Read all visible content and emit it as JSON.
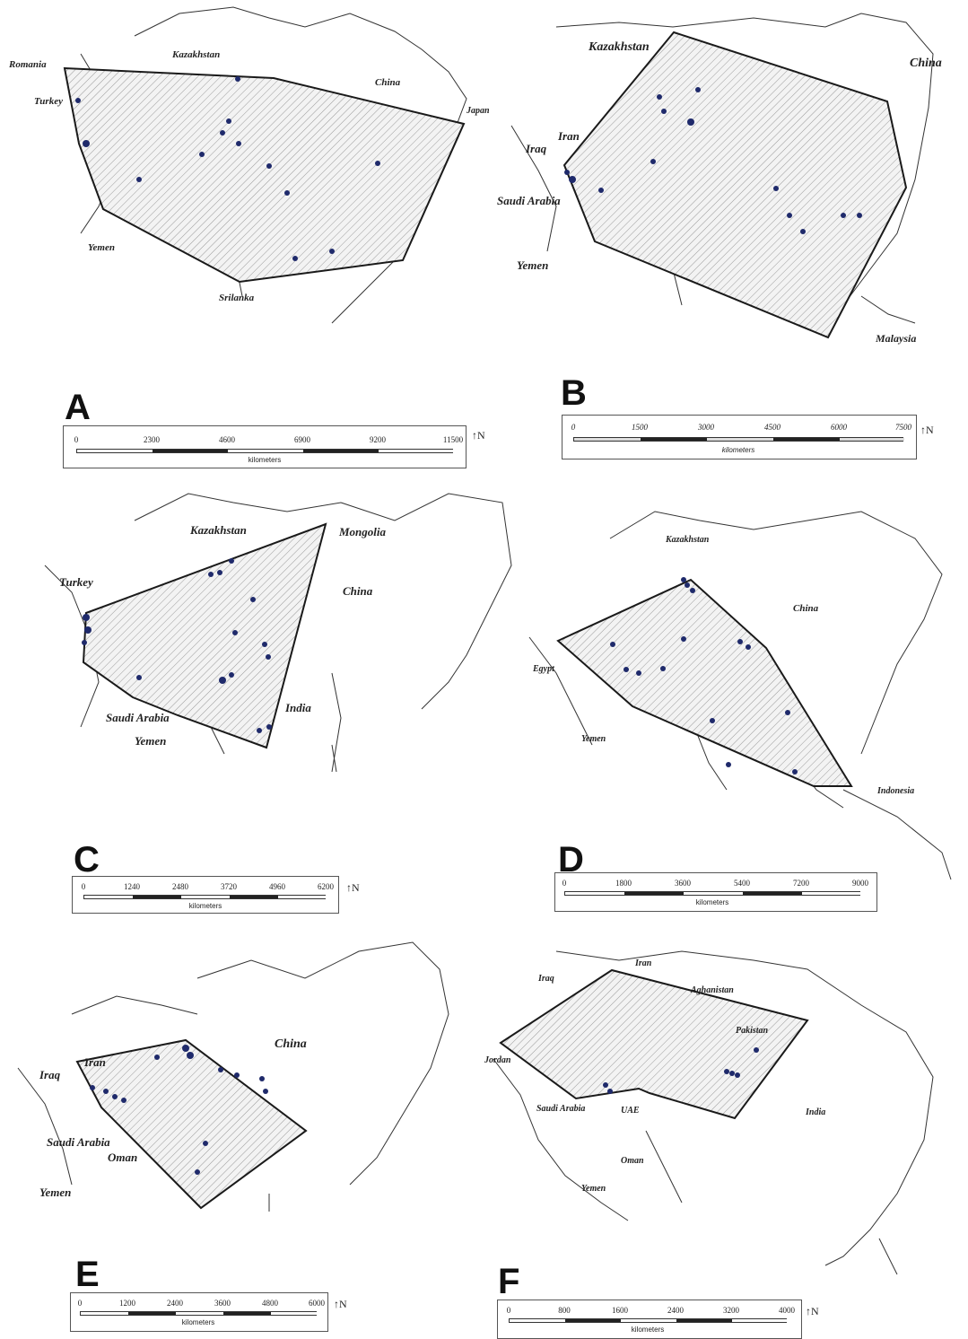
{
  "panels": [
    {
      "letter": "A",
      "labels": [
        "Romania",
        "Kazakhstan",
        "China",
        "Turkey",
        "Japan",
        "Yemen",
        "Srilanka"
      ],
      "scale": {
        "ticks": [
          "0",
          "2300",
          "4600",
          "6900",
          "9200",
          "11500"
        ],
        "units": "kilometers"
      },
      "north": "N"
    },
    {
      "letter": "B",
      "labels": [
        "Kazakhstan",
        "China",
        "Iran",
        "Iraq",
        "Saudi Arabia",
        "Yemen",
        "Malaysia"
      ],
      "scale": {
        "ticks": [
          "0",
          "1500",
          "3000",
          "4500",
          "6000",
          "7500"
        ],
        "units": "kilometers"
      },
      "north": "N"
    },
    {
      "letter": "C",
      "labels": [
        "Kazakhstan",
        "Mongolia",
        "Turkey",
        "China",
        "Saudi Arabia",
        "India",
        "Yemen"
      ],
      "scale": {
        "ticks": [
          "0",
          "1240",
          "2480",
          "3720",
          "4960",
          "6200"
        ],
        "units": "kilometers"
      },
      "north": "N"
    },
    {
      "letter": "D",
      "labels": [
        "Kazakhstan",
        "China",
        "Egypt",
        "Yemen",
        "Indonesia"
      ],
      "scale": {
        "ticks": [
          "0",
          "1800",
          "3600",
          "5400",
          "7200",
          "9000"
        ],
        "units": "kilometers"
      },
      "north": ""
    },
    {
      "letter": "E",
      "labels": [
        "China",
        "Iran",
        "Iraq",
        "Saudi Arabia",
        "Oman",
        "Yemen"
      ],
      "scale": {
        "ticks": [
          "0",
          "1200",
          "2400",
          "3600",
          "4800",
          "6000"
        ],
        "units": "kilometers"
      },
      "north": "N"
    },
    {
      "letter": "F",
      "labels": [
        "Iraq",
        "Iran",
        "Aghanistan",
        "Jordan",
        "Pakistan",
        "Saudi Arabia",
        "UAE",
        "India",
        "Oman",
        "Yemen"
      ],
      "scale": {
        "ticks": [
          "0",
          "800",
          "1600",
          "2400",
          "3200",
          "4000"
        ],
        "units": "kilometers"
      },
      "north": "N"
    }
  ],
  "colors": {
    "polygon_outline": "#1a1a1a",
    "hatch": "#9a9a9a",
    "points": "#1f2a6b",
    "coast": "#333333"
  }
}
